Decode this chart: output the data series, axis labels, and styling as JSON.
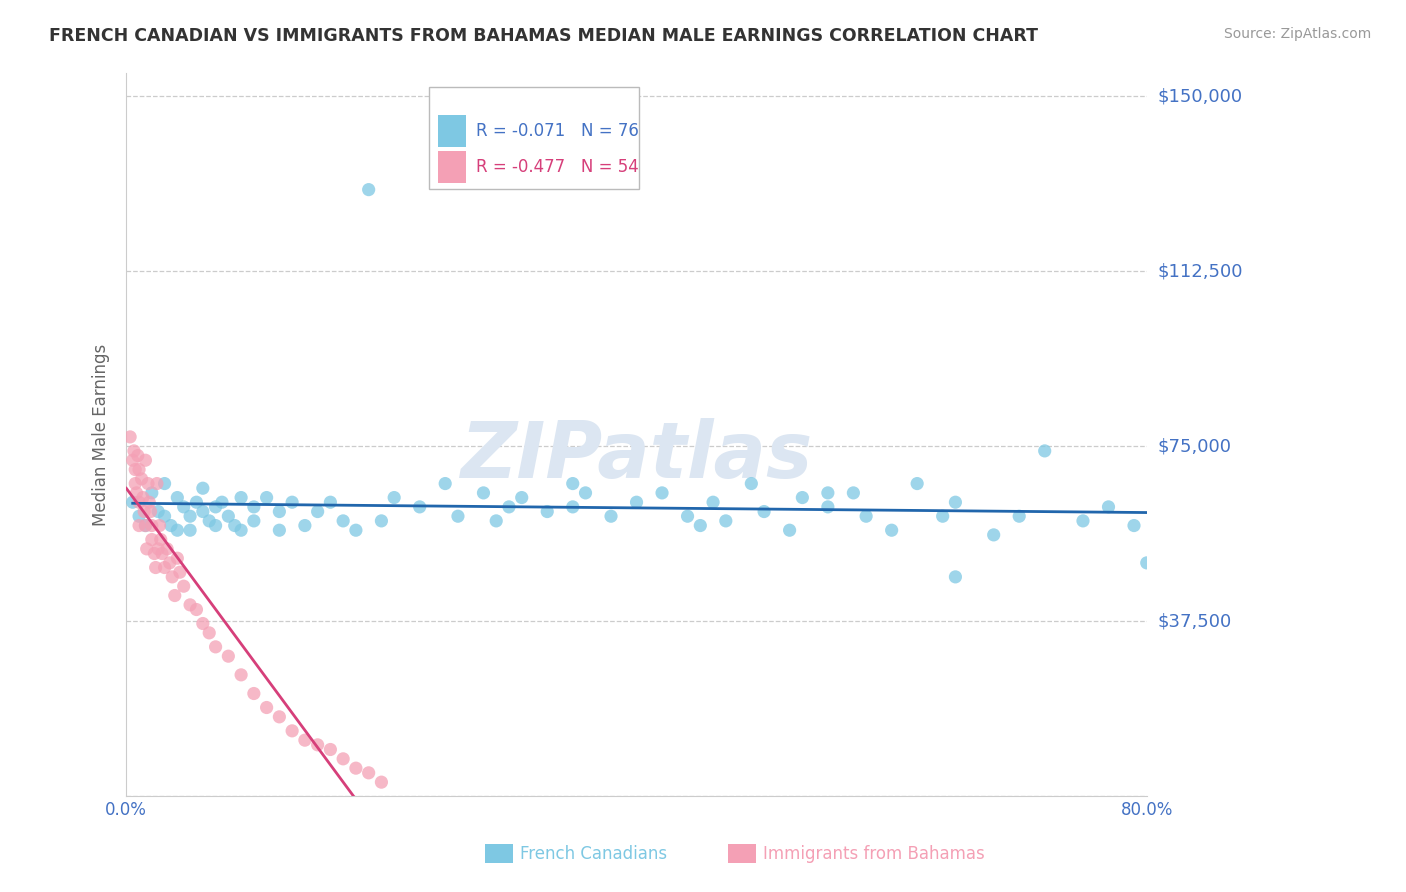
{
  "title": "FRENCH CANADIAN VS IMMIGRANTS FROM BAHAMAS MEDIAN MALE EARNINGS CORRELATION CHART",
  "source": "Source: ZipAtlas.com",
  "ylabel": "Median Male Earnings",
  "xlim": [
    0.0,
    0.8
  ],
  "ylim": [
    0,
    155000
  ],
  "yticks": [
    0,
    37500,
    75000,
    112500,
    150000
  ],
  "ytick_labels": [
    "",
    "$37,500",
    "$75,000",
    "$112,500",
    "$150,000"
  ],
  "xticks": [
    0.0,
    0.1,
    0.2,
    0.3,
    0.4,
    0.5,
    0.6,
    0.7,
    0.8
  ],
  "xtick_labels_show": [
    "0.0%",
    "",
    "",
    "",
    "",
    "",
    "",
    "",
    "80.0%"
  ],
  "blue_color": "#7ec8e3",
  "pink_color": "#f4a0b5",
  "blue_line_color": "#2166ac",
  "pink_line_color": "#d63f7a",
  "title_color": "#333333",
  "axis_label_color": "#666666",
  "tick_color": "#4472C4",
  "grid_color": "#cccccc",
  "watermark": "ZIPatlas",
  "watermark_color": "#dce6f2",
  "R_blue": "-0.071",
  "N_blue": "76",
  "R_pink": "-0.477",
  "N_pink": "54",
  "legend_label_blue": "French Canadians",
  "legend_label_pink": "Immigrants from Bahamas",
  "blue_scatter_x": [
    0.005,
    0.01,
    0.015,
    0.02,
    0.025,
    0.03,
    0.03,
    0.035,
    0.04,
    0.04,
    0.045,
    0.05,
    0.05,
    0.055,
    0.06,
    0.06,
    0.065,
    0.07,
    0.07,
    0.075,
    0.08,
    0.085,
    0.09,
    0.09,
    0.1,
    0.1,
    0.11,
    0.12,
    0.12,
    0.13,
    0.14,
    0.15,
    0.16,
    0.17,
    0.18,
    0.19,
    0.2,
    0.21,
    0.23,
    0.25,
    0.26,
    0.28,
    0.29,
    0.3,
    0.31,
    0.33,
    0.35,
    0.36,
    0.38,
    0.4,
    0.42,
    0.44,
    0.46,
    0.47,
    0.49,
    0.5,
    0.52,
    0.53,
    0.55,
    0.57,
    0.58,
    0.6,
    0.62,
    0.64,
    0.65,
    0.68,
    0.7,
    0.72,
    0.75,
    0.77,
    0.79,
    0.8,
    0.35,
    0.45,
    0.55,
    0.65
  ],
  "blue_scatter_y": [
    63000,
    60000,
    58000,
    65000,
    61000,
    67000,
    60000,
    58000,
    64000,
    57000,
    62000,
    60000,
    57000,
    63000,
    61000,
    66000,
    59000,
    62000,
    58000,
    63000,
    60000,
    58000,
    64000,
    57000,
    62000,
    59000,
    64000,
    57000,
    61000,
    63000,
    58000,
    61000,
    63000,
    59000,
    57000,
    130000,
    59000,
    64000,
    62000,
    67000,
    60000,
    65000,
    59000,
    62000,
    64000,
    61000,
    67000,
    65000,
    60000,
    63000,
    65000,
    60000,
    63000,
    59000,
    67000,
    61000,
    57000,
    64000,
    62000,
    65000,
    60000,
    57000,
    67000,
    60000,
    63000,
    56000,
    60000,
    74000,
    59000,
    62000,
    58000,
    50000,
    62000,
    58000,
    65000,
    47000
  ],
  "pink_scatter_x": [
    0.003,
    0.005,
    0.006,
    0.007,
    0.007,
    0.008,
    0.009,
    0.01,
    0.01,
    0.01,
    0.012,
    0.013,
    0.014,
    0.015,
    0.015,
    0.016,
    0.017,
    0.018,
    0.019,
    0.02,
    0.02,
    0.022,
    0.023,
    0.024,
    0.025,
    0.026,
    0.027,
    0.028,
    0.03,
    0.032,
    0.034,
    0.036,
    0.038,
    0.04,
    0.042,
    0.045,
    0.05,
    0.055,
    0.06,
    0.065,
    0.07,
    0.08,
    0.09,
    0.1,
    0.11,
    0.12,
    0.13,
    0.14,
    0.15,
    0.16,
    0.17,
    0.18,
    0.19,
    0.2
  ],
  "pink_scatter_y": [
    77000,
    72000,
    74000,
    70000,
    67000,
    65000,
    73000,
    63000,
    58000,
    70000,
    68000,
    64000,
    61000,
    58000,
    72000,
    53000,
    67000,
    63000,
    61000,
    58000,
    55000,
    52000,
    49000,
    67000,
    53000,
    58000,
    55000,
    52000,
    49000,
    53000,
    50000,
    47000,
    43000,
    51000,
    48000,
    45000,
    41000,
    40000,
    37000,
    35000,
    32000,
    30000,
    26000,
    22000,
    19000,
    17000,
    14000,
    12000,
    11000,
    10000,
    8000,
    6000,
    5000,
    3000
  ]
}
